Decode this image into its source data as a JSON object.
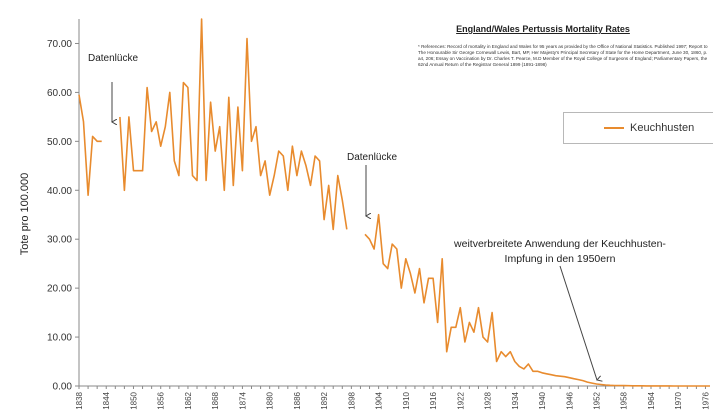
{
  "chart_data": {
    "type": "line",
    "title": "England/Wales Pertussis Mortality Rates",
    "references": "* References: Record of mortality in England and Wales for 95 years as provided by the Office of National Statistics. Published 1997; Report to The Honourable Sir George Cornewall Lewis, Bart, MP, Her Majesty's Principal Secretary of State for the Home Department, June 30, 1860, p. a4, 206; Essay on Vaccination by Dr. Charles T. Pearce, M.D Member of the Royal College of Surgeons of England; Parliamentary Papers, the 62nd Annual Return of the Registrar General 1899 (1891-1898)",
    "ylabel": "Tote pro 100.000",
    "xlabel": "",
    "ylim": [
      0,
      75
    ],
    "xlim": [
      1838,
      1977
    ],
    "y_ticks": [
      "0.00",
      "10.00",
      "20.00",
      "30.00",
      "40.00",
      "50.00",
      "60.00",
      "70.00"
    ],
    "x_ticks": [
      "1838",
      "1844",
      "1850",
      "1856",
      "1862",
      "1868",
      "1874",
      "1880",
      "1886",
      "1892",
      "1898",
      "1904",
      "1910",
      "1916",
      "1922",
      "1928",
      "1934",
      "1940",
      "1946",
      "1952",
      "1958",
      "1964",
      "1970",
      "1976"
    ],
    "legend_position": "top-right",
    "grid": false,
    "series": [
      {
        "name": "Keuchhusten",
        "color": "#e88b2e",
        "segments": [
          {
            "x": [
              1838,
              1839,
              1840,
              1841,
              1842,
              1843
            ],
            "y": [
              59.5,
              54,
              39,
              51,
              50,
              50
            ]
          },
          {
            "x": [
              1847,
              1848,
              1849,
              1850,
              1851,
              1852,
              1853,
              1854,
              1855,
              1856,
              1857,
              1858,
              1859,
              1860,
              1861,
              1862,
              1863,
              1864,
              1865,
              1866,
              1867,
              1868,
              1869,
              1870,
              1871,
              1872,
              1873,
              1874,
              1875,
              1876,
              1877,
              1878,
              1879,
              1880,
              1881,
              1882,
              1883,
              1884,
              1885,
              1886,
              1887,
              1888,
              1889,
              1890,
              1891,
              1892,
              1893,
              1894,
              1895,
              1896,
              1897
            ],
            "y": [
              55,
              40,
              55,
              44,
              44,
              44,
              61,
              52,
              54,
              49,
              53,
              60,
              46,
              43,
              62,
              61,
              43,
              42,
              75,
              42,
              58,
              48,
              53,
              40,
              59,
              41,
              57,
              44,
              71,
              50,
              53,
              43,
              46,
              39,
              43,
              48,
              47,
              40,
              49,
              43,
              48,
              45,
              41,
              47,
              46,
              34,
              41,
              32,
              43,
              38,
              32
            ]
          },
          {
            "x": [
              1901,
              1902,
              1903,
              1904,
              1905,
              1906,
              1907,
              1908,
              1909,
              1910,
              1911,
              1912,
              1913,
              1914,
              1915,
              1916,
              1917,
              1918,
              1919,
              1920,
              1921,
              1922,
              1923,
              1924,
              1925,
              1926,
              1927,
              1928,
              1929,
              1930,
              1931,
              1932,
              1933,
              1934,
              1935,
              1936,
              1937,
              1938,
              1939,
              1940,
              1941,
              1942,
              1943,
              1944,
              1945,
              1946,
              1947,
              1948,
              1949,
              1950,
              1951,
              1952,
              1953,
              1954,
              1955,
              1956,
              1957,
              1958,
              1959,
              1960,
              1961,
              1962,
              1963,
              1964,
              1965,
              1966,
              1967,
              1968,
              1969,
              1970,
              1971,
              1972,
              1973,
              1974,
              1975,
              1976,
              1977
            ],
            "y": [
              31,
              30,
              28,
              35,
              25,
              24,
              29,
              28,
              20,
              26,
              23,
              19,
              24,
              17,
              22,
              22,
              13,
              26,
              7,
              12,
              12,
              16,
              9,
              13,
              11,
              16,
              10,
              9,
              15,
              5,
              7,
              6,
              7,
              5,
              4,
              3.5,
              4.5,
              3,
              3,
              2.7,
              2.5,
              2.3,
              2.1,
              2,
              1.9,
              1.7,
              1.5,
              1.3,
              1.1,
              0.8,
              0.6,
              0.4,
              0.3,
              0.2,
              0.15,
              0.1,
              0.1,
              0.08,
              0.06,
              0.05,
              0.05,
              0.04,
              0.03,
              0.03,
              0.02,
              0.02,
              0.02,
              0.02,
              0.01,
              0.01,
              0.01,
              0.01,
              0.01,
              0.01,
              0.01,
              0.01,
              0.01
            ]
          }
        ]
      }
    ],
    "annotations": [
      {
        "text": "Datenlücke",
        "x": 1845,
        "y": 55
      },
      {
        "text": "Datenlücke",
        "x": 1898,
        "y": 34
      },
      {
        "text": "weitverbreitete Anwendung der Keuchhusten-Impfung in den 1950ern",
        "x": 1952,
        "y": 0.5
      }
    ]
  }
}
